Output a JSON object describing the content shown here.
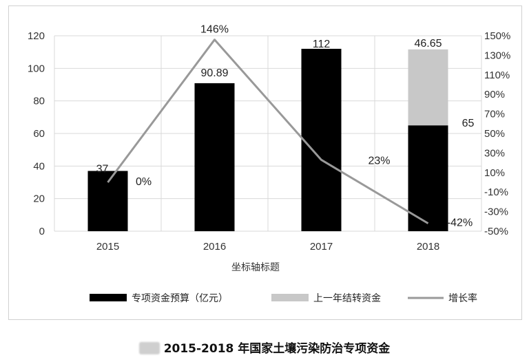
{
  "caption": "2015-2018 年国家土壤污染防治专项资金",
  "colors": {
    "budget": "#000000",
    "carryover": "#c8c8c8",
    "growth": "#999999",
    "grid": "#d9d9d9"
  },
  "chart_data": {
    "type": "bar",
    "stacked": true,
    "categories": [
      "2015",
      "2016",
      "2017",
      "2018"
    ],
    "xlabel": "坐标轴标题",
    "grid": true,
    "legend_position": "bottom",
    "ylim": [
      0,
      120
    ],
    "yticks": [
      "0",
      "20",
      "40",
      "60",
      "80",
      "100",
      "120"
    ],
    "y2lim": [
      -50,
      150
    ],
    "y2ticks": [
      "-50%",
      "-30%",
      "-10%",
      "10%",
      "30%",
      "50%",
      "70%",
      "90%",
      "110%",
      "130%",
      "150%"
    ],
    "series": [
      {
        "name": "专项资金预算（亿元）",
        "type": "bar",
        "values": [
          37,
          90.89,
          112,
          65
        ],
        "labels": [
          "37",
          "90.89",
          "112",
          "65"
        ]
      },
      {
        "name": "上一年结转资金",
        "type": "bar",
        "values": [
          0,
          0,
          0,
          46.65
        ],
        "labels": [
          "",
          "",
          "",
          "46.65"
        ]
      },
      {
        "name": "增长率",
        "type": "line",
        "axis": "right",
        "values": [
          0,
          146,
          23,
          -42
        ],
        "labels": [
          "0%",
          "146%",
          "23%",
          "-42%"
        ]
      }
    ]
  }
}
